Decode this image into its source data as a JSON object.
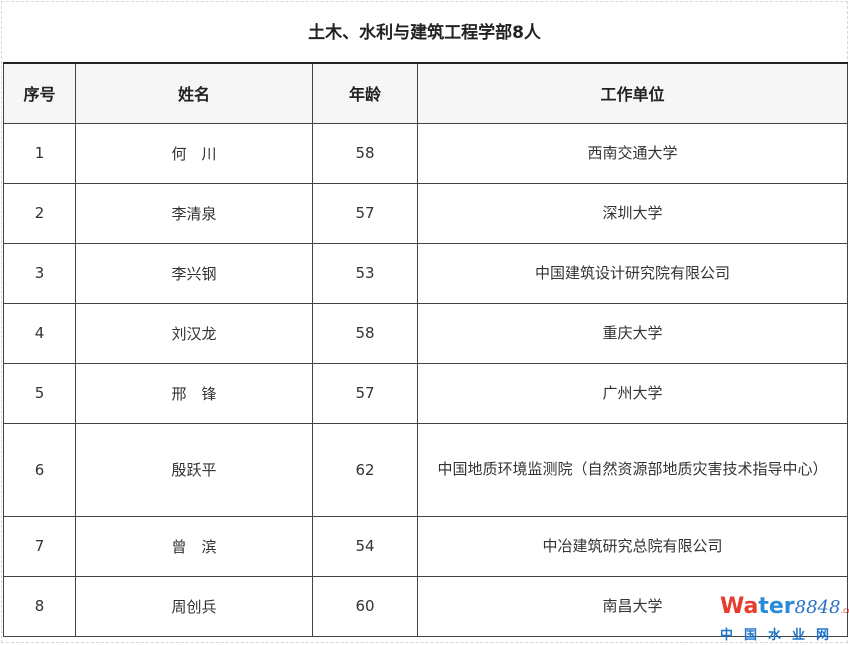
{
  "title": "土木、水利与建筑工程学部8人",
  "table": {
    "headers": [
      "序号",
      "姓名",
      "年龄",
      "工作单位"
    ],
    "rows": [
      {
        "no": "1",
        "name": "何　川",
        "age": "58",
        "org": "西南交通大学"
      },
      {
        "no": "2",
        "name": "李清泉",
        "age": "57",
        "org": "深圳大学"
      },
      {
        "no": "3",
        "name": "李兴钢",
        "age": "53",
        "org": "中国建筑设计研究院有限公司"
      },
      {
        "no": "4",
        "name": "刘汉龙",
        "age": "58",
        "org": "重庆大学"
      },
      {
        "no": "5",
        "name": "邢　锋",
        "age": "57",
        "org": "广州大学"
      },
      {
        "no": "6",
        "name": "殷跃平",
        "age": "62",
        "org": "中国地质环境监测院（自然资源部地质灾害技术指导中心）"
      },
      {
        "no": "7",
        "name": "曾　滨",
        "age": "54",
        "org": "中冶建筑研究总院有限公司"
      },
      {
        "no": "8",
        "name": "周创兵",
        "age": "60",
        "org": "南昌大学"
      }
    ]
  },
  "watermark": {
    "wa": "Wa",
    "ter": "ter",
    "num": "8848",
    "com": ".com",
    "cn": "中国水业网"
  }
}
